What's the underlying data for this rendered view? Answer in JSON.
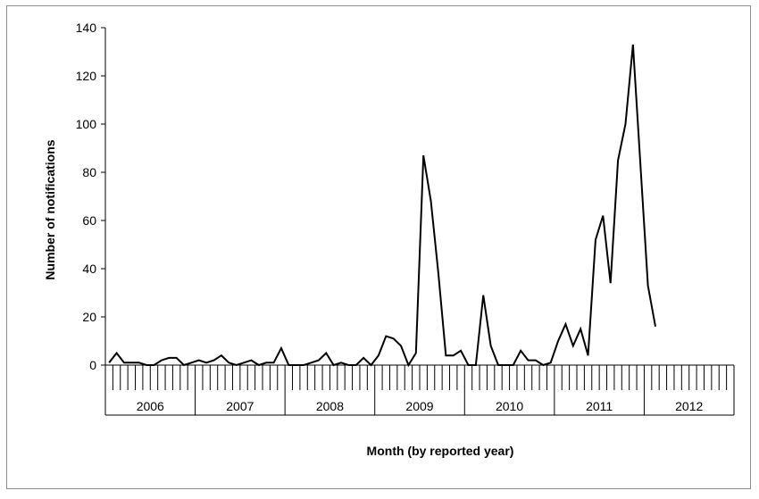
{
  "chart_data": {
    "type": "line",
    "xlabel": "Month (by reported year)",
    "ylabel": "Number of notifications",
    "ylim": [
      0,
      140
    ],
    "yticks": [
      0,
      20,
      40,
      60,
      80,
      100,
      120,
      140
    ],
    "y_tick_labels": [
      "0",
      "20",
      "40",
      "60",
      "80",
      "100",
      "120",
      "140"
    ],
    "grid": false,
    "legend": "none",
    "years": [
      "2006",
      "2007",
      "2008",
      "2009",
      "2010",
      "2011",
      "2012"
    ],
    "months_per_year": 12,
    "series": [
      {
        "color": "#000000",
        "values": [
          1,
          5,
          1,
          1,
          1,
          0,
          0,
          2,
          3,
          3,
          0,
          1,
          2,
          1,
          2,
          4,
          1,
          0,
          1,
          2,
          0,
          1,
          1,
          7,
          0,
          0,
          0,
          1,
          2,
          5,
          0,
          1,
          0,
          0,
          3,
          0,
          4,
          12,
          11,
          8,
          0,
          5,
          87,
          68,
          38,
          4,
          4,
          6,
          0,
          0,
          29,
          8,
          0,
          0,
          0,
          6,
          2,
          2,
          0,
          1,
          10,
          17,
          8,
          15,
          4,
          52,
          62,
          34,
          85,
          100,
          133,
          83,
          33,
          16
        ]
      }
    ]
  }
}
